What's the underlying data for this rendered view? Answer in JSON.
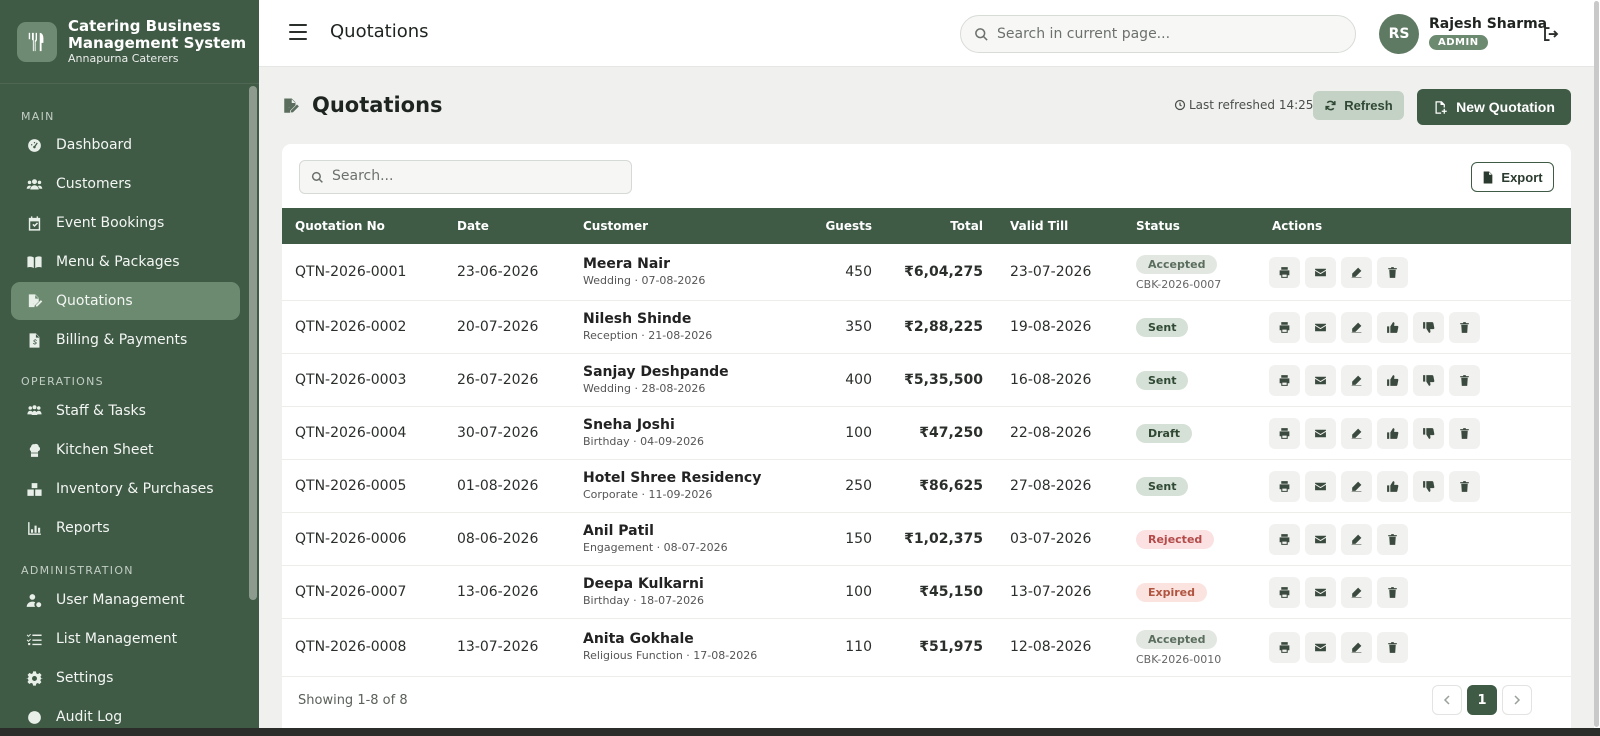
{
  "brand": {
    "title_line1": "Catering Business",
    "title_line2": "Management System",
    "subtitle": "Annapurna Caterers"
  },
  "sidebar": {
    "sections": [
      {
        "label": "MAIN"
      },
      {
        "label": "OPERATIONS"
      },
      {
        "label": "ADMINISTRATION"
      }
    ],
    "items": [
      {
        "label": "Dashboard",
        "icon": "dashboard-icon"
      },
      {
        "label": "Customers",
        "icon": "users-icon"
      },
      {
        "label": "Event Bookings",
        "icon": "calendar-icon"
      },
      {
        "label": "Menu & Packages",
        "icon": "book-icon"
      },
      {
        "label": "Quotations",
        "icon": "file-signature-icon",
        "active": true
      },
      {
        "label": "Billing & Payments",
        "icon": "invoice-icon"
      },
      {
        "label": "Staff & Tasks",
        "icon": "staff-icon"
      },
      {
        "label": "Kitchen Sheet",
        "icon": "chef-icon"
      },
      {
        "label": "Inventory & Purchases",
        "icon": "boxes-icon"
      },
      {
        "label": "Reports",
        "icon": "bar-chart-icon"
      },
      {
        "label": "User Management",
        "icon": "user-cog-icon"
      },
      {
        "label": "List Management",
        "icon": "list-icon"
      },
      {
        "label": "Settings",
        "icon": "gear-icon"
      },
      {
        "label": "Audit Log",
        "icon": "audit-icon"
      }
    ]
  },
  "topbar": {
    "title": "Quotations",
    "search_placeholder": "Search in current page...",
    "user_initials": "RS",
    "user_name": "Rajesh Sharma",
    "user_role": "ADMIN"
  },
  "page": {
    "title": "Quotations",
    "last_refreshed": "Last refreshed 14:25",
    "refresh_label": "Refresh",
    "new_label": "New Quotation",
    "search_placeholder": "Search...",
    "export_label": "Export"
  },
  "table": {
    "columns": [
      "Quotation No",
      "Date",
      "Customer",
      "Guests",
      "Total",
      "Valid Till",
      "Status",
      "Actions"
    ],
    "rows": [
      {
        "no": "QTN-2026-0001",
        "date": "23-06-2026",
        "customer": "Meera Nair",
        "event": "Wedding · 07-08-2026",
        "guests": "450",
        "total": "₹6,04,275",
        "valid": "23-07-2026",
        "status": "Accepted",
        "status_ref": "CBK-2026-0007"
      },
      {
        "no": "QTN-2026-0002",
        "date": "20-07-2026",
        "customer": "Nilesh Shinde",
        "event": "Reception · 21-08-2026",
        "guests": "350",
        "total": "₹2,88,225",
        "valid": "19-08-2026",
        "status": "Sent",
        "status_ref": ""
      },
      {
        "no": "QTN-2026-0003",
        "date": "26-07-2026",
        "customer": "Sanjay Deshpande",
        "event": "Wedding · 28-08-2026",
        "guests": "400",
        "total": "₹5,35,500",
        "valid": "16-08-2026",
        "status": "Sent",
        "status_ref": ""
      },
      {
        "no": "QTN-2026-0004",
        "date": "30-07-2026",
        "customer": "Sneha Joshi",
        "event": "Birthday · 04-09-2026",
        "guests": "100",
        "total": "₹47,250",
        "valid": "22-08-2026",
        "status": "Draft",
        "status_ref": ""
      },
      {
        "no": "QTN-2026-0005",
        "date": "01-08-2026",
        "customer": "Hotel Shree Residency",
        "event": "Corporate · 11-09-2026",
        "guests": "250",
        "total": "₹86,625",
        "valid": "27-08-2026",
        "status": "Sent",
        "status_ref": ""
      },
      {
        "no": "QTN-2026-0006",
        "date": "08-06-2026",
        "customer": "Anil Patil",
        "event": "Engagement · 08-07-2026",
        "guests": "150",
        "total": "₹1,02,375",
        "valid": "03-07-2026",
        "status": "Rejected",
        "status_ref": ""
      },
      {
        "no": "QTN-2026-0007",
        "date": "13-06-2026",
        "customer": "Deepa Kulkarni",
        "event": "Birthday · 18-07-2026",
        "guests": "100",
        "total": "₹45,150",
        "valid": "13-07-2026",
        "status": "Expired",
        "status_ref": ""
      },
      {
        "no": "QTN-2026-0008",
        "date": "13-07-2026",
        "customer": "Anita Gokhale",
        "event": "Religious Function · 17-08-2026",
        "guests": "110",
        "total": "₹51,975",
        "valid": "12-08-2026",
        "status": "Accepted",
        "status_ref": "CBK-2026-0010"
      }
    ]
  },
  "status_colors": {
    "Accepted": {
      "bg": "#e2e7e1",
      "fg": "#5b6e5e"
    },
    "Sent": {
      "bg": "#d5e0d6",
      "fg": "#2f4934"
    },
    "Draft": {
      "bg": "#d5e0d6",
      "fg": "#2f4934"
    },
    "Rejected": {
      "bg": "#fbe1e1",
      "fg": "#b44a4a"
    },
    "Expired": {
      "bg": "#fbe3e0",
      "fg": "#b0553f"
    }
  },
  "footer": {
    "showing": "Showing 1-8 of 8",
    "current_page": "1"
  }
}
